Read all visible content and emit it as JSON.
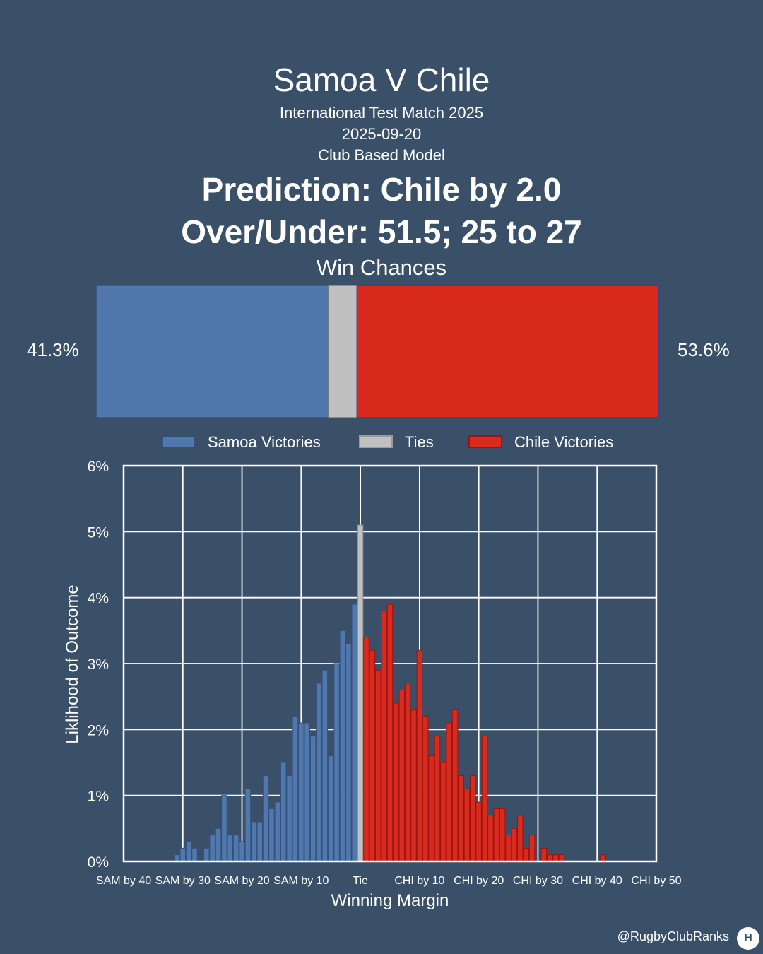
{
  "header": {
    "title": "Samoa V Chile",
    "competition": "International Test Match 2025",
    "date": "2025-09-20",
    "model": "Club Based Model",
    "prediction": "Prediction: Chile by 2.0",
    "over_under": "Over/Under: 51.5; 25 to 27",
    "win_chances_title": "Win Chances"
  },
  "win_chances": {
    "samoa_pct": 41.3,
    "tie_pct": 5.1,
    "chile_pct": 53.6,
    "samoa_label": "41.3%",
    "chile_label": "53.6%"
  },
  "legend": {
    "samoa": "Samoa Victories",
    "ties": "Ties",
    "chile": "Chile Victories"
  },
  "colors": {
    "samoa": "#5078ac",
    "tie": "#c0c0c0",
    "chile": "#d92a1e",
    "background": "#3a5068",
    "edge_samoa": "#34507a",
    "edge_chile": "#9a1410"
  },
  "chart_data": {
    "type": "bar",
    "xlabel": "Winning Margin",
    "ylabel": "Liklihood of Outcome",
    "xlim": [
      -40,
      50
    ],
    "ylim": [
      0,
      6
    ],
    "xticks": [
      -40,
      -30,
      -20,
      -10,
      0,
      10,
      20,
      30,
      40,
      50
    ],
    "xtick_labels": [
      "SAM by 40",
      "SAM by 30",
      "SAM by 20",
      "SAM by 10",
      "Tie",
      "CHI by 10",
      "CHI by 20",
      "CHI by 30",
      "CHI by 40",
      "CHI by 50"
    ],
    "yticks": [
      0,
      1,
      2,
      3,
      4,
      5,
      6
    ],
    "ytick_labels": [
      "0%",
      "1%",
      "2%",
      "3%",
      "4%",
      "5%",
      "6%"
    ],
    "grid": true,
    "series": [
      {
        "name": "Samoa Victories",
        "x": [
          -31,
          -30,
          -29,
          -28,
          -27,
          -26,
          -25,
          -24,
          -23,
          -22,
          -21,
          -20,
          -19,
          -18,
          -17,
          -16,
          -15,
          -14,
          -13,
          -12,
          -11,
          -10,
          -9,
          -8,
          -7,
          -6,
          -5,
          -4,
          -3,
          -2,
          -1
        ],
        "values": [
          0.1,
          0.2,
          0.3,
          0.2,
          0.0,
          0.2,
          0.4,
          0.5,
          1.0,
          0.4,
          0.4,
          0.3,
          1.1,
          0.6,
          0.6,
          1.3,
          0.8,
          0.9,
          1.5,
          1.3,
          2.2,
          2.1,
          2.1,
          1.9,
          2.7,
          2.9,
          1.6,
          3.0,
          3.5,
          3.3,
          3.9
        ]
      },
      {
        "name": "Ties",
        "x": [
          0
        ],
        "values": [
          5.1
        ]
      },
      {
        "name": "Chile Victories",
        "x": [
          1,
          2,
          3,
          4,
          5,
          6,
          7,
          8,
          9,
          10,
          11,
          12,
          13,
          14,
          15,
          16,
          17,
          18,
          19,
          20,
          21,
          22,
          23,
          24,
          25,
          26,
          27,
          28,
          29,
          30,
          31,
          32,
          33,
          34,
          35,
          36,
          37,
          38,
          39,
          40,
          41
        ],
        "values": [
          3.4,
          3.2,
          2.9,
          3.8,
          3.9,
          2.4,
          2.6,
          2.7,
          2.3,
          3.2,
          2.2,
          1.6,
          1.9,
          1.5,
          2.1,
          2.3,
          1.3,
          1.1,
          1.3,
          0.9,
          1.9,
          0.7,
          0.8,
          0.8,
          0.4,
          0.5,
          0.7,
          0.2,
          0.4,
          0.0,
          0.2,
          0.1,
          0.1,
          0.1,
          0.0,
          0.0,
          0.0,
          0.0,
          0.0,
          0.0,
          0.1
        ]
      }
    ]
  },
  "footer": {
    "handle": "@RugbyClubRanks",
    "logo_text": "H"
  }
}
